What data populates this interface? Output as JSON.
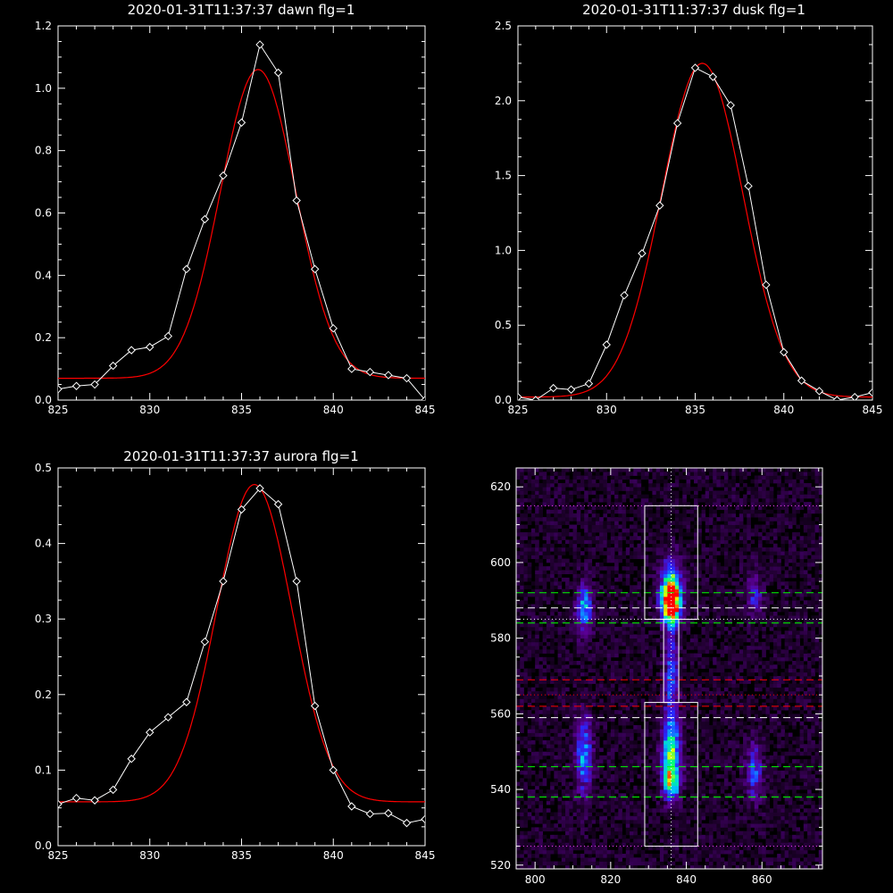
{
  "chart_data": [
    {
      "type": "line",
      "title": "2020-01-31T11:37:37 dawn flg=1",
      "xlim": [
        825,
        845
      ],
      "ylim": [
        0,
        1.2
      ],
      "xticks": [
        "825",
        "830",
        "835",
        "840",
        "845"
      ],
      "yticks": [
        "0.0",
        "0.2",
        "0.4",
        "0.6",
        "0.8",
        "1.0",
        "1.2"
      ],
      "colors": {
        "data": "#ffffff",
        "fit": "#ff0000"
      },
      "series": [
        {
          "x": [
            825,
            826,
            827,
            828,
            829,
            830,
            831,
            832,
            833,
            834,
            835,
            836,
            837,
            838,
            839,
            840,
            841,
            842,
            843,
            844,
            845
          ],
          "values": [
            0.035,
            0.045,
            0.05,
            0.11,
            0.16,
            0.17,
            0.205,
            0.42,
            0.58,
            0.72,
            0.89,
            1.14,
            1.05,
            0.64,
            0.42,
            0.23,
            0.1,
            0.09,
            0.08,
            0.07,
            0.0
          ]
        },
        {
          "fit": {
            "amplitude": 0.99,
            "center": 835.9,
            "sigma": 2.05,
            "baseline": 0.07
          }
        }
      ]
    },
    {
      "type": "line",
      "title": "2020-01-31T11:37:37 dusk flg=1",
      "xlim": [
        825,
        845
      ],
      "ylim": [
        0,
        2.5
      ],
      "xticks": [
        "825",
        "830",
        "835",
        "840",
        "845"
      ],
      "yticks": [
        "0.0",
        "0.5",
        "1.0",
        "1.5",
        "2.0",
        "2.5"
      ],
      "colors": {
        "data": "#ffffff",
        "fit": "#ff0000"
      },
      "series": [
        {
          "x": [
            825,
            826,
            827,
            828,
            829,
            830,
            831,
            832,
            833,
            834,
            835,
            836,
            837,
            838,
            839,
            840,
            841,
            842,
            843,
            844,
            845
          ],
          "values": [
            0.02,
            0.0,
            0.08,
            0.07,
            0.11,
            0.37,
            0.7,
            0.98,
            1.3,
            1.85,
            2.22,
            2.16,
            1.97,
            1.43,
            0.77,
            0.32,
            0.13,
            0.06,
            0.0,
            0.02,
            0.05
          ]
        },
        {
          "fit": {
            "amplitude": 2.23,
            "center": 835.4,
            "sigma": 2.3,
            "baseline": 0.02
          }
        }
      ]
    },
    {
      "type": "line",
      "title": "2020-01-31T11:37:37 aurora flg=1",
      "xlim": [
        825,
        845
      ],
      "ylim": [
        0,
        0.5
      ],
      "xticks": [
        "825",
        "830",
        "835",
        "840",
        "845"
      ],
      "yticks": [
        "0.0",
        "0.1",
        "0.2",
        "0.3",
        "0.4",
        "0.5"
      ],
      "colors": {
        "data": "#ffffff",
        "fit": "#ff0000"
      },
      "series": [
        {
          "x": [
            825,
            826,
            827,
            828,
            829,
            830,
            831,
            832,
            833,
            834,
            835,
            836,
            837,
            838,
            839,
            840,
            841,
            842,
            843,
            844,
            845
          ],
          "values": [
            0.055,
            0.063,
            0.06,
            0.074,
            0.115,
            0.15,
            0.17,
            0.19,
            0.27,
            0.35,
            0.445,
            0.473,
            0.452,
            0.35,
            0.185,
            0.1,
            0.052,
            0.042,
            0.043,
            0.03,
            0.035
          ]
        },
        {
          "fit": {
            "amplitude": 0.42,
            "center": 835.7,
            "sigma": 2.05,
            "baseline": 0.058
          }
        }
      ]
    },
    {
      "type": "heatmap",
      "xlim": [
        795,
        876
      ],
      "ylim": [
        519,
        625
      ],
      "xticks": [
        "800",
        "820",
        "840",
        "860"
      ],
      "yticks": [
        "520",
        "540",
        "560",
        "580",
        "600",
        "620"
      ],
      "features": [
        {
          "x": 813,
          "y": 588,
          "amp": 0.45,
          "sx": 1.4,
          "sy": 4.5
        },
        {
          "x": 836,
          "y": 589,
          "amp": 1.0,
          "sx": 1.6,
          "sy": 3.5
        },
        {
          "x": 836,
          "y": 594,
          "amp": 0.5,
          "sx": 2.0,
          "sy": 5.0
        },
        {
          "x": 836,
          "y": 570,
          "amp": 0.35,
          "sx": 1.2,
          "sy": 9.0
        },
        {
          "x": 836,
          "y": 550,
          "amp": 0.55,
          "sx": 1.7,
          "sy": 6.0
        },
        {
          "x": 836,
          "y": 542,
          "amp": 0.5,
          "sx": 1.5,
          "sy": 3.5
        },
        {
          "x": 813,
          "y": 549,
          "amp": 0.4,
          "sx": 1.6,
          "sy": 7.0
        },
        {
          "x": 858,
          "y": 545,
          "amp": 0.32,
          "sx": 1.5,
          "sy": 5.0
        },
        {
          "x": 858,
          "y": 592,
          "amp": 0.25,
          "sx": 1.4,
          "sy": 4.0
        }
      ],
      "boxes": [
        {
          "x0": 829,
          "x1": 843,
          "y0": 585,
          "y1": 615
        },
        {
          "x0": 829,
          "x1": 843,
          "y0": 525,
          "y1": 563
        },
        {
          "x0": 834,
          "x1": 838,
          "y0": 563,
          "y1": 585
        }
      ],
      "hlines": [
        {
          "y": 615,
          "color": "#ff44ff",
          "style": "dotted"
        },
        {
          "y": 592,
          "color": "#00ff00",
          "style": "dashed"
        },
        {
          "y": 588,
          "color": "#ffffff",
          "style": "dashed"
        },
        {
          "y": 585,
          "color": "#ffffff",
          "style": "dotted"
        },
        {
          "y": 584,
          "color": "#00ff00",
          "style": "dashed"
        },
        {
          "y": 569,
          "color": "#ff0000",
          "style": "dashed"
        },
        {
          "y": 565,
          "color": "#ff0000",
          "style": "dotted"
        },
        {
          "y": 562,
          "color": "#ff0000",
          "style": "dashed"
        },
        {
          "y": 559,
          "color": "#ffffff",
          "style": "dashed"
        },
        {
          "y": 546,
          "color": "#00ff00",
          "style": "dashed"
        },
        {
          "y": 538,
          "color": "#00ff00",
          "style": "dashed"
        },
        {
          "y": 525,
          "color": "#ff44ff",
          "style": "dotted"
        }
      ],
      "vlines": [
        {
          "x": 836,
          "color": "#ffffff",
          "style": "dotted"
        }
      ]
    }
  ]
}
